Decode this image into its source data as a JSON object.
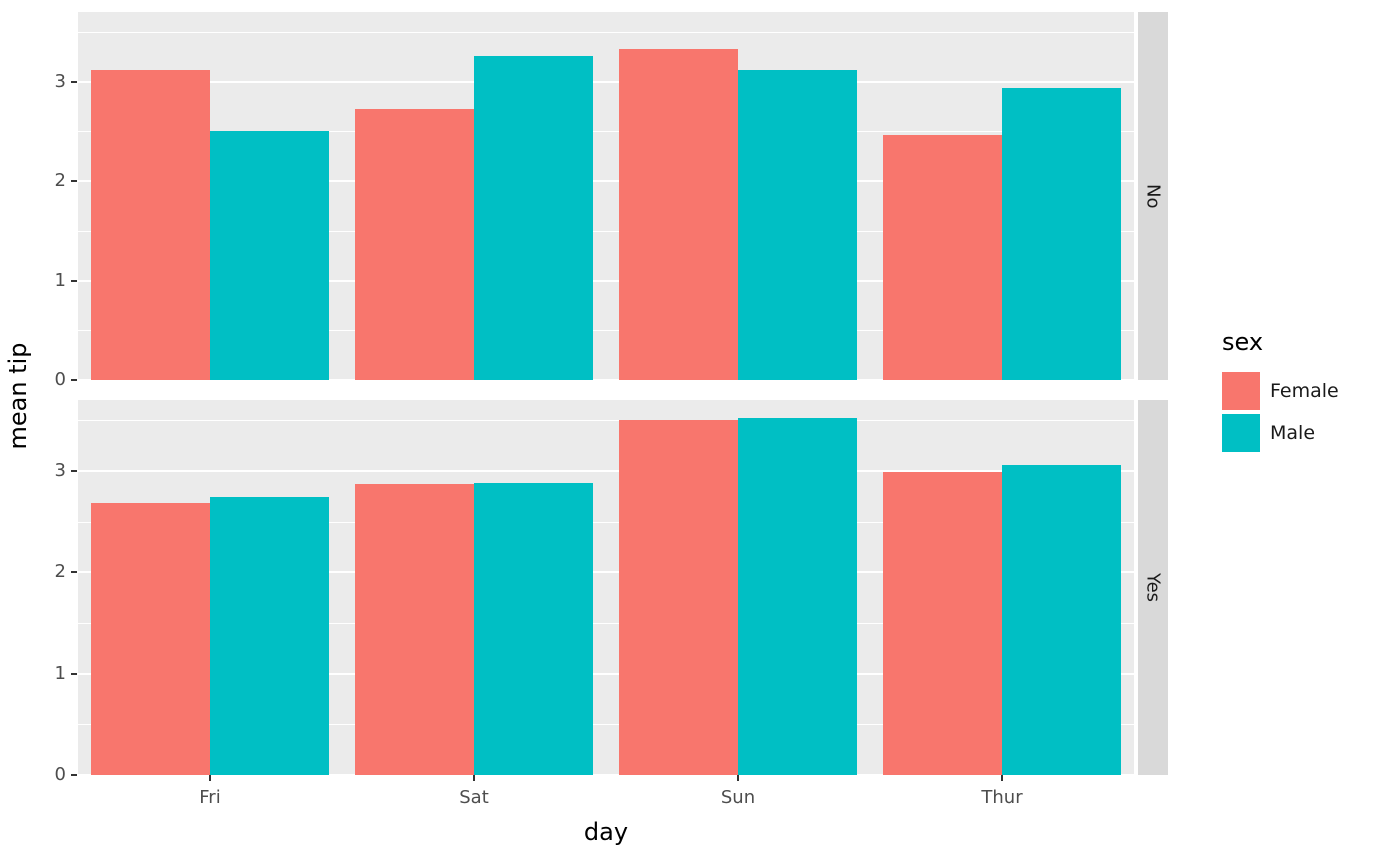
{
  "chart_data": {
    "type": "bar",
    "title": "",
    "xlabel": "day",
    "ylabel": "mean tip",
    "categories": [
      "Fri",
      "Sat",
      "Sun",
      "Thur"
    ],
    "y_ticks": [
      0,
      1,
      2,
      3
    ],
    "ylim": [
      0,
      3.7
    ],
    "grid": true,
    "legend": {
      "title": "sex",
      "position": "right",
      "entries": [
        {
          "label": "Female",
          "color": "#F8766D"
        },
        {
          "label": "Male",
          "color": "#00BFC4"
        }
      ]
    },
    "facets": [
      {
        "label": "No",
        "series": [
          {
            "name": "Female",
            "values": [
              3.12,
              2.72,
              3.33,
              2.46
            ]
          },
          {
            "name": "Male",
            "values": [
              2.5,
              3.26,
              3.12,
              2.94
            ]
          }
        ]
      },
      {
        "label": "Yes",
        "series": [
          {
            "name": "Female",
            "values": [
              2.68,
              2.87,
              3.5,
              2.99
            ]
          },
          {
            "name": "Male",
            "values": [
              2.74,
              2.88,
              3.52,
              3.06
            ]
          }
        ]
      }
    ]
  },
  "colors": {
    "female": "#F8766D",
    "male": "#00BFC4",
    "panel_background": "#EBEBEB",
    "strip_background": "#D9D9D9",
    "grid": "#FFFFFF",
    "tick_text": "#4D4D4D",
    "axis_title_text": "#000000"
  }
}
